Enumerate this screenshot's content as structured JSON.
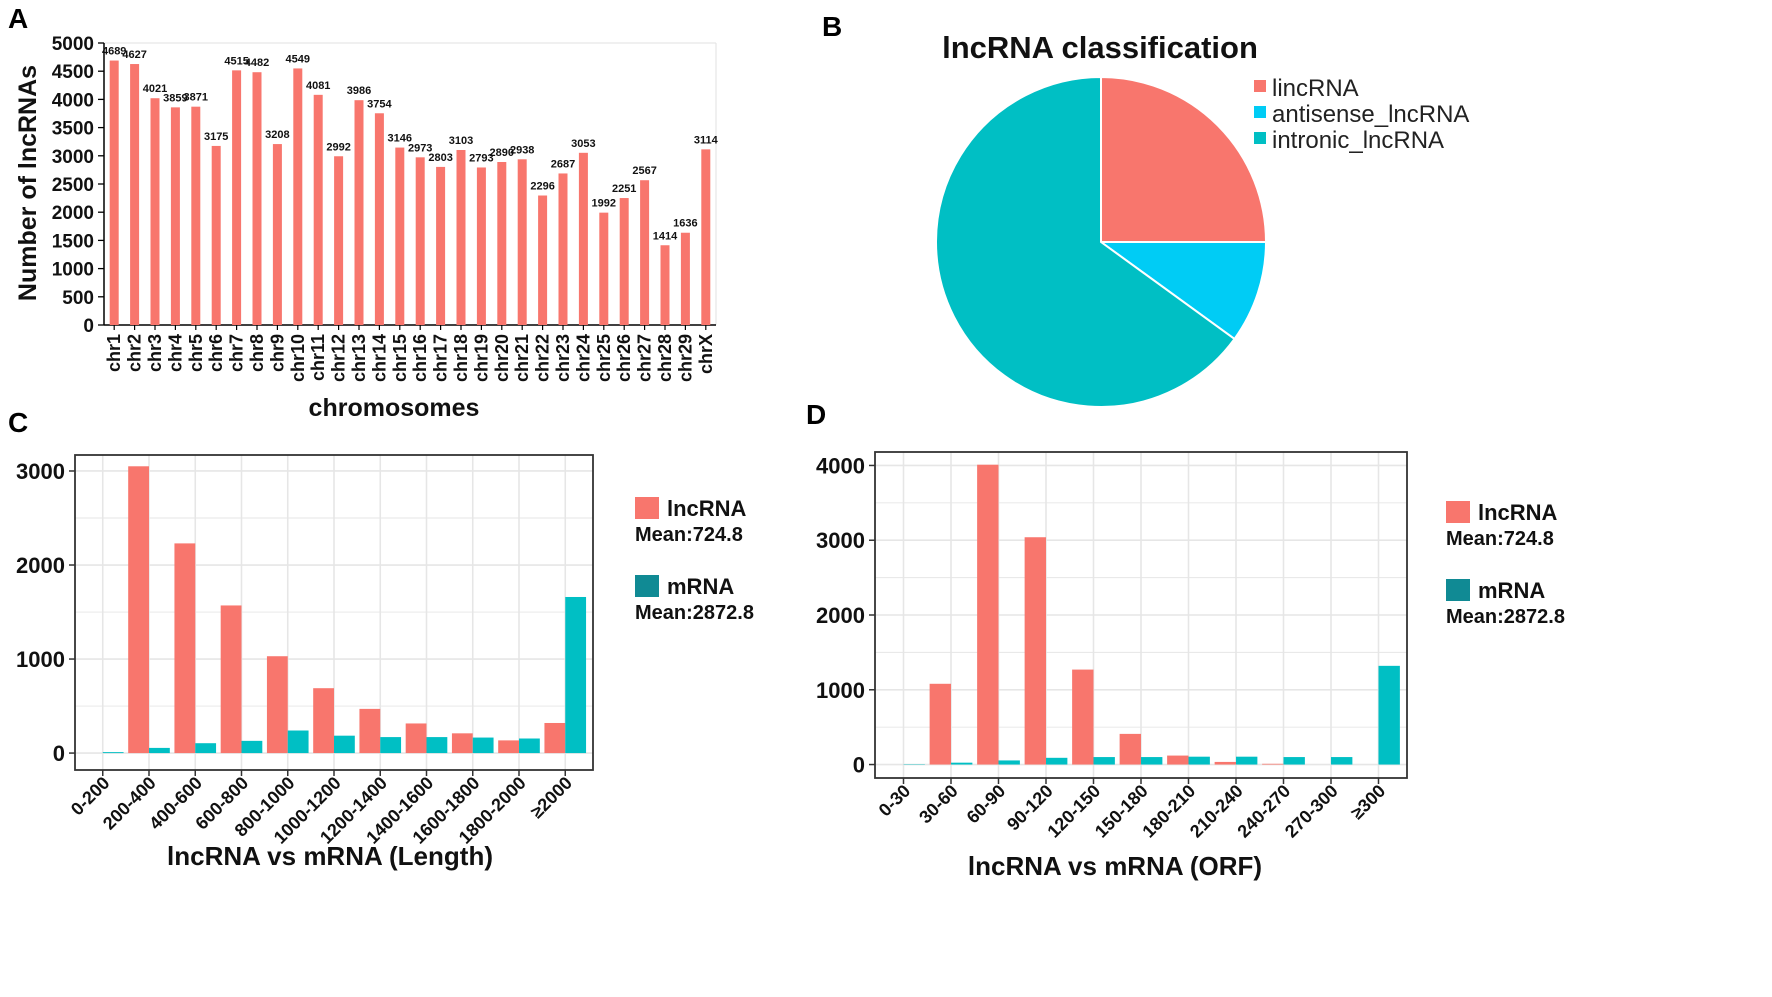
{
  "colors": {
    "lnc": "#F8766D",
    "mrna_bar": "#00BFC4",
    "mrna_key": "#108A94",
    "antisense": "#00CCF5",
    "grid": "#E6E6E6",
    "axis": "#333333"
  },
  "chart_data": [
    {
      "id": "A",
      "type": "bar",
      "panel_label": "A",
      "title": "",
      "xlabel": "chromosomes",
      "ylabel": "Number of lncRNAs",
      "ylim": [
        0,
        5000
      ],
      "yticks": [
        0,
        500,
        1000,
        1500,
        2000,
        2500,
        3000,
        3500,
        4000,
        4500,
        5000
      ],
      "categories": [
        "chr1",
        "chr2",
        "chr3",
        "chr4",
        "chr5",
        "chr6",
        "chr7",
        "chr8",
        "chr9",
        "chr10",
        "chr11",
        "chr12",
        "chr13",
        "chr14",
        "chr15",
        "chr16",
        "chr17",
        "chr18",
        "chr19",
        "chr20",
        "chr21",
        "chr22",
        "chr23",
        "chr24",
        "chr25",
        "chr26",
        "chr27",
        "chr28",
        "chr29",
        "chrX"
      ],
      "values": [
        4689,
        4627,
        4021,
        3859,
        3871,
        3175,
        4515,
        4482,
        3208,
        4549,
        4081,
        2992,
        3986,
        3754,
        3146,
        2973,
        2803,
        3103,
        2793,
        2890,
        2938,
        2296,
        2687,
        3053,
        1992,
        2251,
        2567,
        1414,
        1636,
        3114
      ],
      "labels": [
        "4689",
        "4627",
        "4021",
        "3859",
        "3871",
        "3175",
        "4515",
        "4482",
        "3208",
        "4549",
        "4081",
        "2992",
        "3986",
        "3754",
        "3146",
        "2973",
        "2803",
        "3103",
        "2793",
        "2890",
        "2938",
        "2296",
        "2687",
        "3053",
        "1992",
        "2251",
        "2567",
        "1414",
        "1636",
        "3114"
      ]
    },
    {
      "id": "B",
      "type": "pie",
      "panel_label": "B",
      "title": "lncRNA classification",
      "slices": [
        {
          "name": "lincRNA",
          "value": 25
        },
        {
          "name": "antisense_lncRNA",
          "value": 10
        },
        {
          "name": "intronic_lncRNA",
          "value": 65
        }
      ],
      "legend_position": "right"
    },
    {
      "id": "C",
      "type": "bar",
      "panel_label": "C",
      "title": "",
      "xlabel": "lncRNA vs mRNA (Length)",
      "ylabel": "",
      "ylim": [
        -180,
        3170
      ],
      "yticks": [
        0,
        1000,
        2000,
        3000
      ],
      "categories": [
        "0-200",
        "200-400",
        "400-600",
        "600-800",
        "800-1000",
        "1000-1200",
        "1200-1400",
        "1400-1600",
        "1600-1800",
        "1800-2000",
        "≥2000"
      ],
      "series": [
        {
          "name": "lncRNA",
          "values": [
            0,
            3050,
            2230,
            1570,
            1030,
            690,
            470,
            315,
            210,
            135,
            320
          ]
        },
        {
          "name": "mRNA",
          "values": [
            10,
            55,
            105,
            130,
            240,
            185,
            170,
            170,
            165,
            155,
            1660
          ]
        }
      ],
      "legend": [
        {
          "name": "lncRNA",
          "note": "Mean:724.8"
        },
        {
          "name": "mRNA",
          "note": "Mean:2872.8"
        }
      ],
      "legend_position": "right",
      "grid": true
    },
    {
      "id": "D",
      "type": "bar",
      "panel_label": "D",
      "title": "",
      "xlabel": "lncRNA vs mRNA (ORF)",
      "ylabel": "",
      "ylim": [
        -180,
        4180
      ],
      "yticks": [
        0,
        1000,
        2000,
        3000,
        4000
      ],
      "categories": [
        "0-30",
        "30-60",
        "60-90",
        "90-120",
        "120-150",
        "150-180",
        "180-210",
        "210-240",
        "240-270",
        "270-300",
        "≥300"
      ],
      "series": [
        {
          "name": "lncRNA",
          "values": [
            0,
            1080,
            4010,
            3040,
            1270,
            410,
            120,
            35,
            10,
            0,
            0
          ]
        },
        {
          "name": "mRNA",
          "values": [
            5,
            25,
            55,
            90,
            100,
            100,
            105,
            105,
            100,
            100,
            1320
          ]
        }
      ],
      "legend": [
        {
          "name": "lncRNA",
          "note": "Mean:724.8"
        },
        {
          "name": "mRNA",
          "note": "Mean:2872.8"
        }
      ],
      "legend_position": "right",
      "grid": true
    }
  ]
}
